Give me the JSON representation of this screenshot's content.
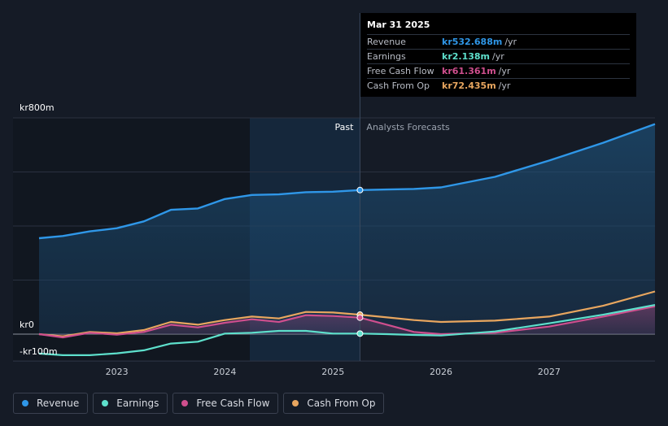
{
  "chart_data": {
    "type": "line",
    "y_axis": {
      "labels": [
        "kr800m",
        "kr0",
        "-kr100m"
      ],
      "ylim": [
        -100,
        800
      ],
      "units": "kr millions"
    },
    "x_axis": {
      "ticks": [
        "2023",
        "2024",
        "2025",
        "2026",
        "2027"
      ],
      "xlim": [
        2022.28,
        2027.98
      ]
    },
    "regions": {
      "past_label": "Past",
      "forecast_label": "Analysts Forecasts",
      "divider_x": 2025.25,
      "past_shade_start": 2024.23
    },
    "series": [
      {
        "name": "Revenue",
        "color": "#2f97e8",
        "fill": true,
        "points": [
          [
            2022.28,
            355
          ],
          [
            2022.5,
            363
          ],
          [
            2022.75,
            380
          ],
          [
            2023.0,
            392
          ],
          [
            2023.25,
            417
          ],
          [
            2023.5,
            460
          ],
          [
            2023.75,
            465
          ],
          [
            2024.0,
            500
          ],
          [
            2024.25,
            515
          ],
          [
            2024.5,
            517
          ],
          [
            2024.75,
            525
          ],
          [
            2025.0,
            527
          ],
          [
            2025.25,
            533
          ],
          [
            2025.5,
            535
          ],
          [
            2025.75,
            537
          ],
          [
            2026.0,
            543
          ],
          [
            2026.5,
            582
          ],
          [
            2027.0,
            642
          ],
          [
            2027.5,
            708
          ],
          [
            2027.98,
            777
          ]
        ]
      },
      {
        "name": "Earnings",
        "color": "#5ee0cc",
        "fill": false,
        "points": [
          [
            2022.28,
            -72
          ],
          [
            2022.5,
            -78
          ],
          [
            2022.75,
            -78
          ],
          [
            2023.0,
            -71
          ],
          [
            2023.25,
            -60
          ],
          [
            2023.5,
            -35
          ],
          [
            2023.75,
            -28
          ],
          [
            2024.0,
            2
          ],
          [
            2024.25,
            5
          ],
          [
            2024.5,
            12
          ],
          [
            2024.75,
            12
          ],
          [
            2025.0,
            2
          ],
          [
            2025.25,
            2
          ],
          [
            2025.5,
            0
          ],
          [
            2025.75,
            -3
          ],
          [
            2026.0,
            -5
          ],
          [
            2026.5,
            10
          ],
          [
            2027.0,
            40
          ],
          [
            2027.5,
            72
          ],
          [
            2027.98,
            108
          ]
        ]
      },
      {
        "name": "Free Cash Flow",
        "color": "#cf4f8e",
        "fill": true,
        "points": [
          [
            2022.28,
            0
          ],
          [
            2022.5,
            -12
          ],
          [
            2022.75,
            5
          ],
          [
            2023.0,
            -2
          ],
          [
            2023.25,
            8
          ],
          [
            2023.5,
            35
          ],
          [
            2023.75,
            25
          ],
          [
            2024.0,
            42
          ],
          [
            2024.25,
            55
          ],
          [
            2024.5,
            45
          ],
          [
            2024.75,
            70
          ],
          [
            2025.0,
            67
          ],
          [
            2025.25,
            61
          ],
          [
            2025.5,
            35
          ],
          [
            2025.75,
            8
          ],
          [
            2026.0,
            0
          ],
          [
            2026.5,
            5
          ],
          [
            2027.0,
            28
          ],
          [
            2027.5,
            65
          ],
          [
            2027.98,
            103
          ]
        ]
      },
      {
        "name": "Cash From Op",
        "color": "#e8a65f",
        "fill": false,
        "points": [
          [
            2022.28,
            0
          ],
          [
            2022.5,
            -8
          ],
          [
            2022.75,
            8
          ],
          [
            2023.0,
            3
          ],
          [
            2023.25,
            15
          ],
          [
            2023.5,
            45
          ],
          [
            2023.75,
            35
          ],
          [
            2024.0,
            52
          ],
          [
            2024.25,
            65
          ],
          [
            2024.5,
            58
          ],
          [
            2024.75,
            82
          ],
          [
            2025.0,
            80
          ],
          [
            2025.25,
            72
          ],
          [
            2025.5,
            62
          ],
          [
            2025.75,
            52
          ],
          [
            2026.0,
            45
          ],
          [
            2026.5,
            50
          ],
          [
            2027.0,
            65
          ],
          [
            2027.5,
            105
          ],
          [
            2027.98,
            158
          ]
        ]
      }
    ]
  },
  "tooltip": {
    "date": "Mar 31 2025",
    "rows": [
      {
        "label": "Revenue",
        "value": "kr532.688m",
        "unit": "/yr",
        "color": "#2f97e8"
      },
      {
        "label": "Earnings",
        "value": "kr2.138m",
        "unit": "/yr",
        "color": "#5ee0cc"
      },
      {
        "label": "Free Cash Flow",
        "value": "kr61.361m",
        "unit": "/yr",
        "color": "#cf4f8e"
      },
      {
        "label": "Cash From Op",
        "value": "kr72.435m",
        "unit": "/yr",
        "color": "#e8a65f"
      }
    ]
  },
  "legend": [
    {
      "label": "Revenue",
      "color": "#2f97e8"
    },
    {
      "label": "Earnings",
      "color": "#5ee0cc"
    },
    {
      "label": "Free Cash Flow",
      "color": "#cf4f8e"
    },
    {
      "label": "Cash From Op",
      "color": "#e8a65f"
    }
  ]
}
